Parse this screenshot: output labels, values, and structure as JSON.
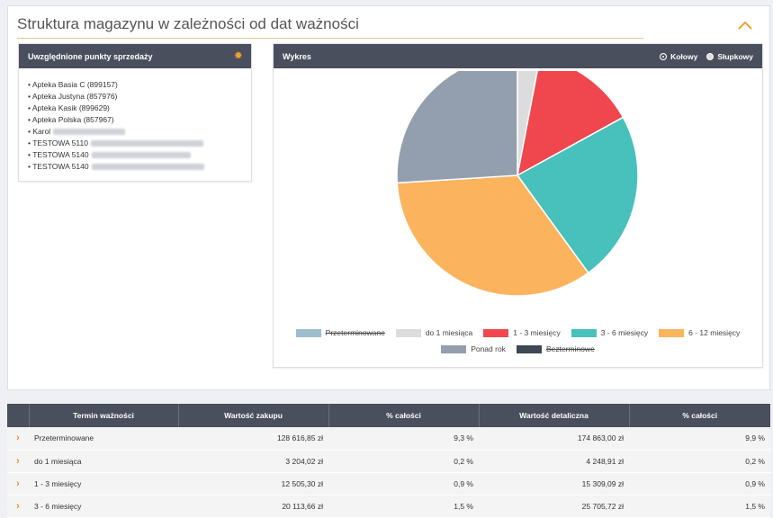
{
  "page": {
    "title": "Struktura magazynu w zależności od dat ważności"
  },
  "shops_card": {
    "title": "Uwzględnione punkty sprzedaży",
    "items": [
      {
        "label": "Apteka Basia C (899157)",
        "redacted": false
      },
      {
        "label": "Apteka Justyna (857976)",
        "redacted": false
      },
      {
        "label": "Apteka Kasik (899629)",
        "redacted": false
      },
      {
        "label": "Apteka Polska (857967)",
        "redacted": false
      },
      {
        "label": "Karol",
        "redacted": true
      },
      {
        "label": "TESTOWA 5110",
        "redacted": true
      },
      {
        "label": "TESTOWA 5140",
        "redacted": true
      },
      {
        "label": "TESTOWA 5140",
        "redacted": true
      }
    ]
  },
  "chart_card": {
    "title": "Wykres",
    "options": [
      {
        "label": "Kołowy",
        "selected": true
      },
      {
        "label": "Słupkowy",
        "selected": false
      }
    ]
  },
  "chart_data": {
    "type": "pie",
    "slices": [
      {
        "name": "Przeterminowane",
        "value": 0,
        "color": "#9dbdcc",
        "hidden": true
      },
      {
        "name": "do 1 miesiąca",
        "value": 3,
        "color": "#dcdcdc",
        "hidden": false
      },
      {
        "name": "1 - 3 miesięcy",
        "value": 14,
        "color": "#f0464d",
        "hidden": false
      },
      {
        "name": "3 - 6 miesięcy",
        "value": 23,
        "color": "#48c0bc",
        "hidden": false
      },
      {
        "name": "6 - 12 miesięcy",
        "value": 34,
        "color": "#fbb35e",
        "hidden": false
      },
      {
        "name": "Ponad rok",
        "value": 26,
        "color": "#939fae",
        "hidden": false
      },
      {
        "name": "Bezterminowe",
        "value": 0,
        "color": "#3f4654",
        "hidden": true
      }
    ]
  },
  "table": {
    "headers": [
      "Termin ważności",
      "Wartość zakupu",
      "% całości",
      "Wartość detaliczna",
      "% całości"
    ],
    "rows": [
      [
        "Przeterminowane",
        "128 616,85 zł",
        "9,3 %",
        "174 863,00 zł",
        "9,9 %"
      ],
      [
        "do 1 miesiąca",
        "3 204,02 zł",
        "0,2 %",
        "4 248,91 zł",
        "0,2 %"
      ],
      [
        "1 - 3 miesięcy",
        "12 505,30 zł",
        "0,9 %",
        "15 309,09 zł",
        "0,9 %"
      ],
      [
        "3 - 6 miesięcy",
        "20 113,66 zł",
        "1,5 %",
        "25 705,72 zł",
        "1,5 %"
      ]
    ]
  }
}
